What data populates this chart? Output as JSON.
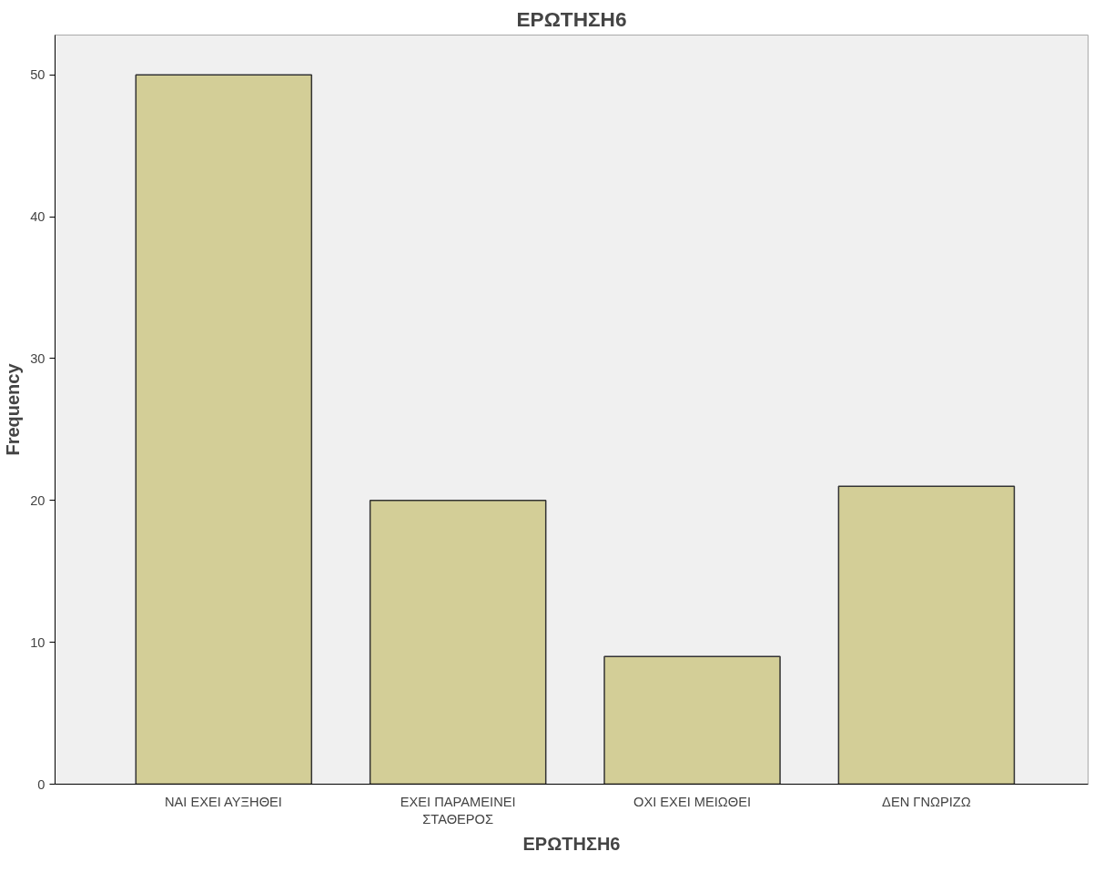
{
  "chart_data": {
    "type": "bar",
    "title": "ΕΡΩΤΗΣΗ6",
    "xlabel": "ΕΡΩΤΗΣΗ6",
    "ylabel": "Frequency",
    "categories": [
      "ΝΑΙ ΕΧΕΙ ΑΥΞΗΘΕΙ",
      "ΕΧΕΙ ΠΑΡΑΜΕΙΝΕΙ\nΣΤΑΘΕΡΟΣ",
      "ΟΧΙ ΕΧΕΙ ΜΕΙΩΘΕΙ",
      "ΔΕΝ ΓΝΩΡΙΖΩ"
    ],
    "values": [
      50,
      20,
      9,
      21
    ],
    "color": "#d3ce97",
    "ylim": [
      0,
      52.8
    ],
    "yticks": [
      0,
      10,
      20,
      30,
      40,
      50
    ],
    "grid": false
  }
}
